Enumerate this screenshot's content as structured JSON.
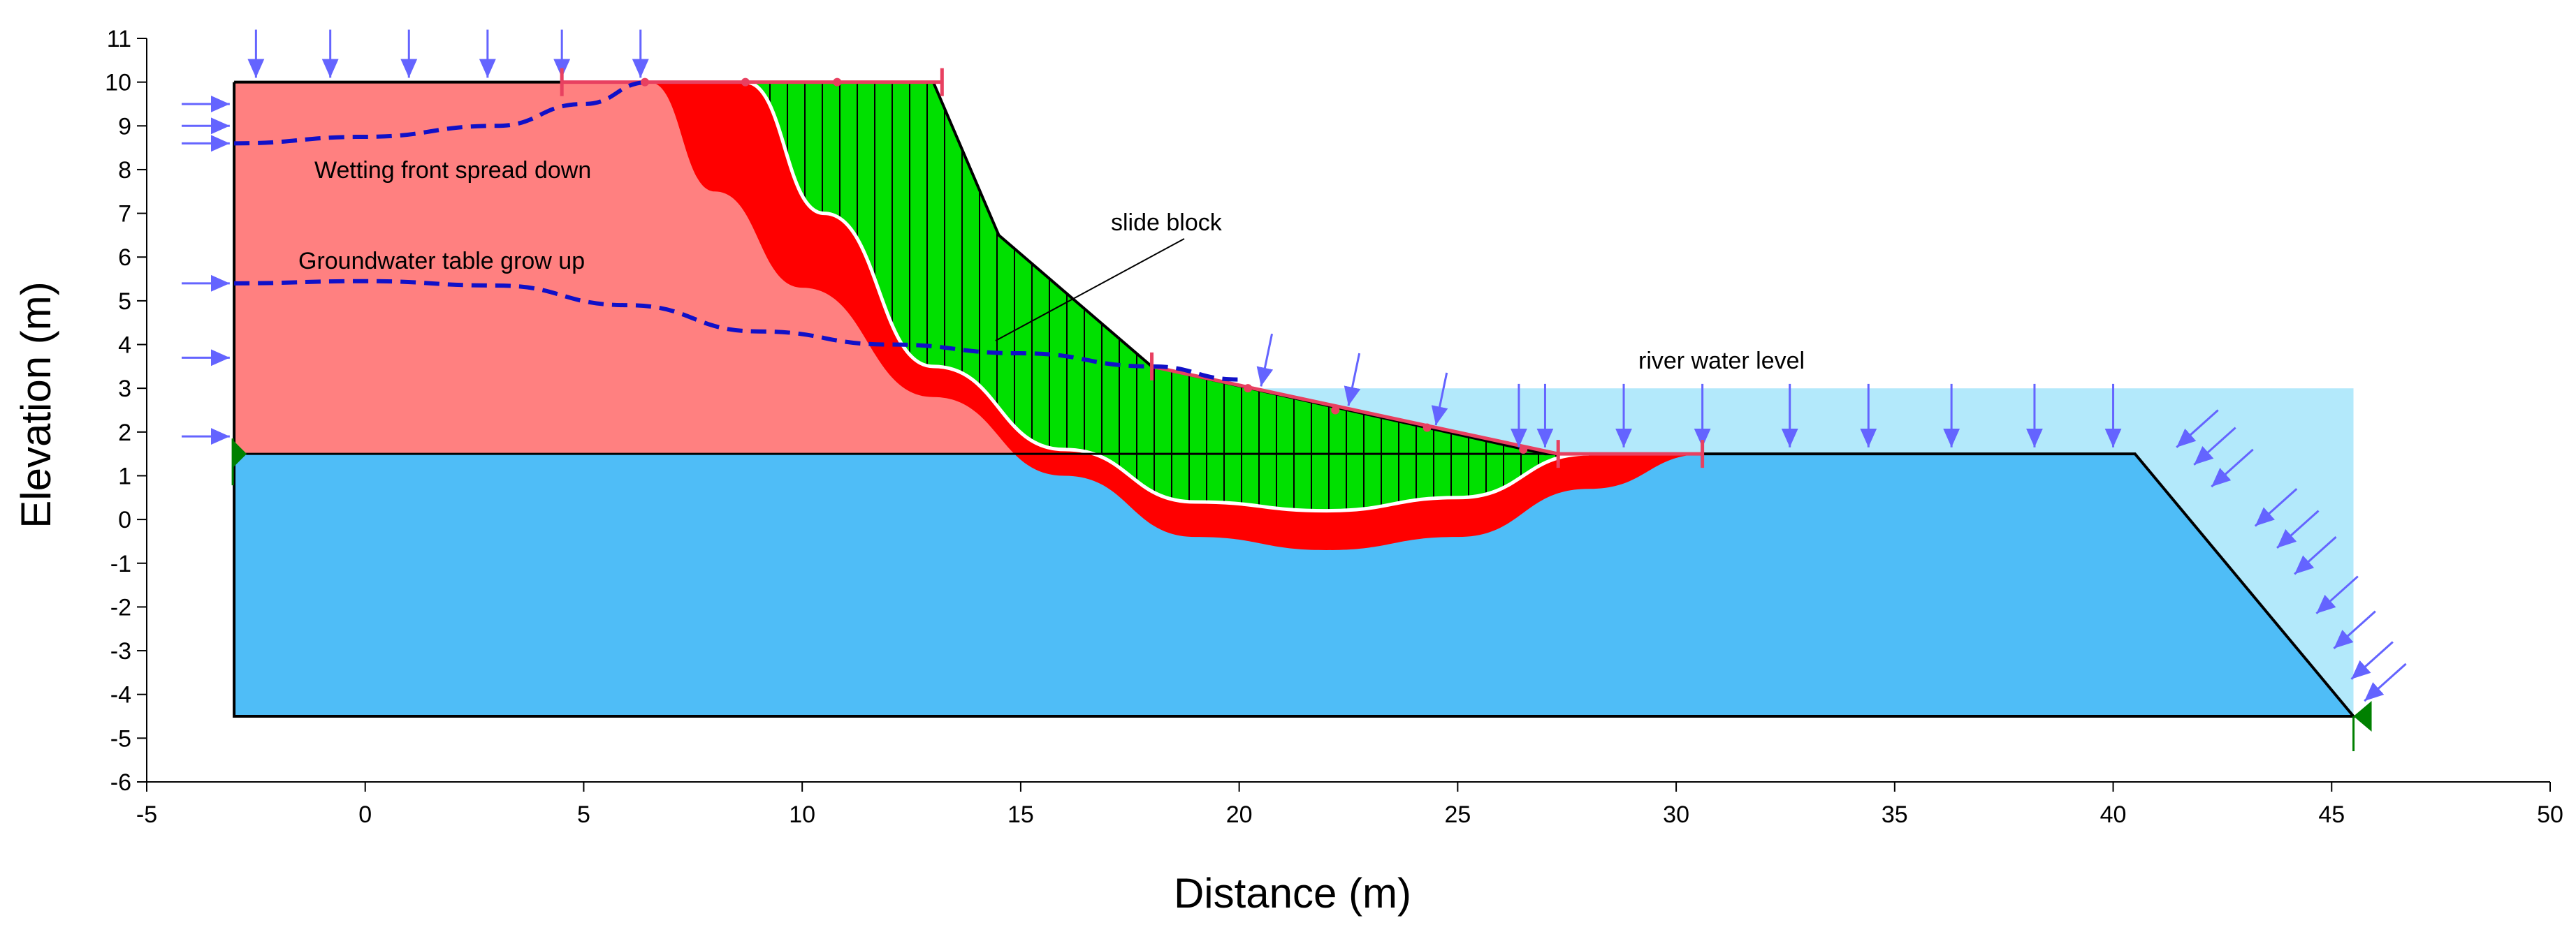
{
  "title": "",
  "axes": {
    "xlabel": "Distance (m)",
    "ylabel": "Elevation  (m)",
    "xlim": [
      -5,
      50
    ],
    "ylim": [
      -6,
      11
    ],
    "x_ticks": [
      "-5",
      "0",
      "5",
      "10",
      "15",
      "20",
      "25",
      "30",
      "35",
      "40",
      "45",
      "50"
    ],
    "y_ticks": [
      "11",
      "10",
      "9",
      "8",
      "7",
      "6",
      "5",
      "4",
      "3",
      "2",
      "1",
      "0",
      "-1",
      "-2",
      "-3",
      "-4",
      "-5",
      "-6"
    ]
  },
  "annotations": {
    "wetting_front": "Wetting front spread down",
    "groundwater": "Groundwater table grow up",
    "slide_block": "slide block",
    "river_level": "river water level"
  },
  "colors": {
    "soil_upper": "#ff8080",
    "soil_lower": "#4fbdf7",
    "river_water": "#b3e9fb",
    "slide_block": "#00e000",
    "failure_zone": "#ff0000",
    "water_lines": "#1010c8",
    "load_arrows": "#6464ff",
    "boundary_marker": "#e84060",
    "fixed_marker": "#008000"
  },
  "chart_data": {
    "type": "diagram",
    "domain": "slope stability cross-section",
    "x_range": [
      -5,
      50
    ],
    "y_range": [
      -6,
      11
    ],
    "soil_profile": [
      [
        -3,
        10
      ],
      [
        6.5,
        10
      ],
      [
        13,
        10
      ],
      [
        14.5,
        6.5
      ],
      [
        18,
        3.5
      ],
      [
        27,
        1.5
      ],
      [
        40.5,
        1.5
      ],
      [
        45.5,
        -4.5
      ],
      [
        -3,
        -4.5
      ]
    ],
    "layer_boundary_elevation": 1.5,
    "river_water_level": 3.0,
    "river_extent_x": [
      19,
      45.5
    ],
    "wetting_front": [
      [
        -3,
        8.6
      ],
      [
        0,
        8.75
      ],
      [
        3,
        9.0
      ],
      [
        5,
        9.5
      ],
      [
        6.5,
        10
      ]
    ],
    "groundwater_table": [
      [
        -3,
        5.4
      ],
      [
        0,
        5.45
      ],
      [
        3,
        5.35
      ],
      [
        6,
        4.9
      ],
      [
        9,
        4.3
      ],
      [
        12,
        4.0
      ],
      [
        15,
        3.8
      ],
      [
        18,
        3.5
      ],
      [
        20,
        3.2
      ]
    ],
    "slip_surface": [
      [
        8.7,
        10
      ],
      [
        10.5,
        7.0
      ],
      [
        13,
        3.5
      ],
      [
        16,
        1.6
      ],
      [
        19,
        0.4
      ],
      [
        22,
        0.2
      ],
      [
        25,
        0.5
      ],
      [
        28,
        1.5
      ]
    ],
    "failure_outer": [
      [
        6.5,
        10
      ],
      [
        8,
        7.5
      ],
      [
        10,
        5.3
      ],
      [
        13,
        2.8
      ],
      [
        16,
        1.0
      ],
      [
        19,
        -0.4
      ],
      [
        22,
        -0.7
      ],
      [
        25,
        -0.4
      ],
      [
        28,
        0.7
      ],
      [
        30.7,
        1.5
      ]
    ],
    "top_loads_x": [
      -2.5,
      -0.8,
      1,
      2.8,
      4.5,
      6.3
    ],
    "slope_loads_x": [
      20.5,
      22.5,
      24.5
    ],
    "river_loads_x": [
      26.4,
      27,
      28.8,
      30.6,
      32.6,
      34.4,
      36.3,
      38.2,
      40
    ],
    "left_loads_y": [
      9.5,
      9.0,
      8.6,
      5.4,
      3.7,
      1.9
    ],
    "right_loads": [
      [
        41.4,
        1.6
      ],
      [
        41.8,
        1.2
      ],
      [
        42.2,
        0.7
      ],
      [
        43.2,
        -0.2
      ],
      [
        43.7,
        -0.7
      ],
      [
        44.1,
        -1.3
      ],
      [
        44.6,
        -2.2
      ],
      [
        45.0,
        -3.0
      ],
      [
        45.4,
        -3.7
      ],
      [
        45.7,
        -4.2
      ]
    ],
    "boundary_markers": [
      [
        4.5,
        10
      ],
      [
        13.2,
        10
      ],
      [
        18,
        3.5
      ],
      [
        27.3,
        1.5
      ],
      [
        30.6,
        1.5
      ]
    ],
    "small_marks": [
      [
        6.4,
        10
      ],
      [
        8.7,
        10
      ],
      [
        10.8,
        10
      ],
      [
        20.2,
        3.0
      ],
      [
        22.2,
        2.5
      ],
      [
        24.3,
        2.1
      ],
      [
        26.5,
        1.6
      ]
    ]
  }
}
